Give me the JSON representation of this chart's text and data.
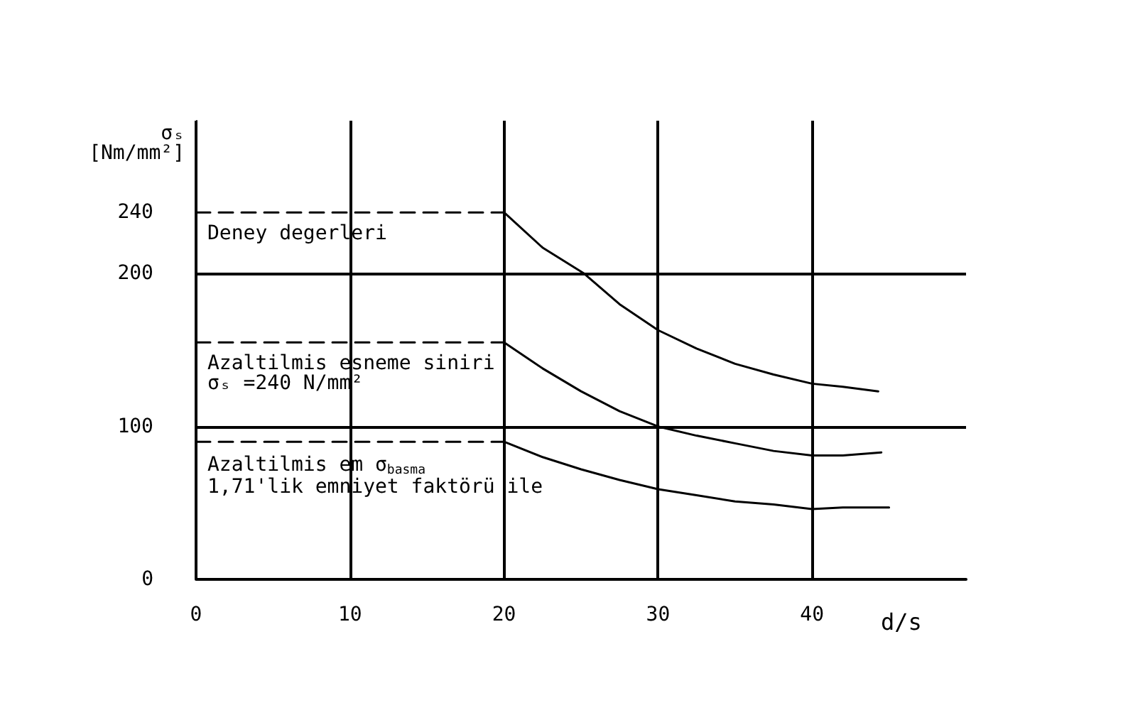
{
  "chart_data": {
    "type": "line",
    "xlabel": "d/s",
    "ylabel": "σₛ\n[Nm/mm²]",
    "xlim": [
      0,
      50
    ],
    "ylim": [
      0,
      300
    ],
    "xticks": [
      0,
      10,
      20,
      30,
      40
    ],
    "yticks": [
      0,
      100,
      200,
      240
    ],
    "grid": "x",
    "marker": "none",
    "series": [
      {
        "color": "#000000",
        "line_style": "dashed",
        "x": [
          0,
          20
        ],
        "values": [
          240,
          240
        ]
      },
      {
        "color": "#000000",
        "line_style": "dashed",
        "x": [
          0,
          20
        ],
        "values": [
          155,
          155
        ]
      },
      {
        "color": "#000000",
        "line_style": "dashed",
        "x": [
          0,
          20
        ],
        "values": [
          90,
          90
        ]
      },
      {
        "color": "#000000",
        "line_style": "solid",
        "x": [
          20,
          22.5,
          25.2,
          27.5,
          30,
          32.5,
          35,
          37.5,
          40,
          42,
          44.3
        ],
        "values": [
          240,
          217,
          200,
          180,
          163,
          151,
          141,
          134,
          128,
          126,
          123
        ]
      },
      {
        "color": "#000000",
        "line_style": "solid",
        "x": [
          20,
          22.5,
          25,
          27.5,
          30,
          32.5,
          35,
          37.5,
          40,
          42,
          44.5
        ],
        "values": [
          155,
          138,
          123,
          110,
          100,
          94,
          89,
          84,
          81,
          81,
          83
        ]
      },
      {
        "color": "#000000",
        "line_style": "solid",
        "x": [
          20,
          22.5,
          25,
          27.5,
          30,
          32.5,
          35,
          37.5,
          40,
          42,
          45
        ],
        "values": [
          90,
          80,
          72,
          65,
          59,
          55,
          51,
          49,
          46,
          47,
          47
        ]
      }
    ],
    "ref_lines": [
      {
        "axis": "y",
        "value": 200,
        "color": "#000000",
        "line_style": "solid"
      },
      {
        "axis": "y",
        "value": 100,
        "color": "#000000",
        "line_style": "solid"
      }
    ],
    "annotations": [
      "Deney degerleri",
      "Azaltilmis esneme siniri\nσₛ =240 N/mm²",
      "Azaltilmis em σ$_{basma}$\n1,71'lik emniyet faktörü ile"
    ]
  }
}
